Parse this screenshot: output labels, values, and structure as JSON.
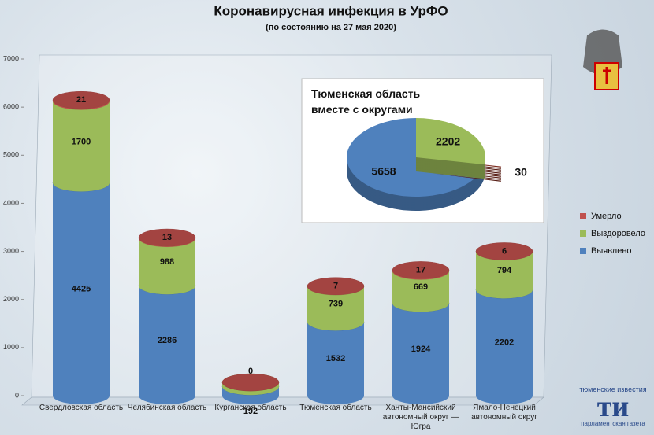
{
  "chart_data": {
    "type": "bar",
    "stacked": true,
    "title": "Коронавирусная инфекция в УрФО",
    "subtitle": "(по состоянию на 27 мая 2020)",
    "categories": [
      "Свердловская область",
      "Челябинская область",
      "Курганская область",
      "Тюменская область",
      "Ханты-Мансийский автономный округ — Югра",
      "Ямало-Ненецкий автономный округ"
    ],
    "series": [
      {
        "name": "Выявлено",
        "color": "#4f81bd",
        "values": [
          4425,
          2286,
          192,
          1532,
          1924,
          2202
        ]
      },
      {
        "name": "Выздоровело",
        "color": "#9bbb59",
        "values": [
          1700,
          988,
          85,
          739,
          669,
          794
        ]
      },
      {
        "name": "Умерло",
        "color": "#c0504d",
        "values": [
          21,
          13,
          0,
          7,
          17,
          6
        ]
      }
    ],
    "ylim": [
      0,
      7000
    ],
    "yticks": [
      0,
      1000,
      2000,
      3000,
      4000,
      5000,
      6000,
      7000
    ],
    "inset": {
      "type": "pie",
      "title": "Тюменская область вместе с округами",
      "values": [
        5658,
        30,
        2202
      ],
      "colors": [
        "#4f81bd",
        "#7b2a1c",
        "#9bbb59"
      ]
    }
  },
  "logo": {
    "top": "тюменские известия",
    "mark": "ти",
    "bottom": "парламентская газета"
  }
}
